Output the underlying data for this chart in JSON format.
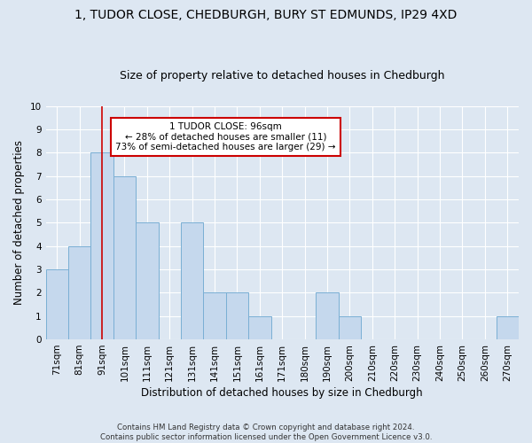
{
  "title": "1, TUDOR CLOSE, CHEDBURGH, BURY ST EDMUNDS, IP29 4XD",
  "subtitle": "Size of property relative to detached houses in Chedburgh",
  "xlabel": "Distribution of detached houses by size in Chedburgh",
  "ylabel": "Number of detached properties",
  "categories": [
    "71sqm",
    "81sqm",
    "91sqm",
    "101sqm",
    "111sqm",
    "121sqm",
    "131sqm",
    "141sqm",
    "151sqm",
    "161sqm",
    "171sqm",
    "180sqm",
    "190sqm",
    "200sqm",
    "210sqm",
    "220sqm",
    "230sqm",
    "240sqm",
    "250sqm",
    "260sqm",
    "270sqm"
  ],
  "values": [
    3,
    4,
    8,
    7,
    5,
    0,
    5,
    2,
    2,
    1,
    0,
    0,
    2,
    1,
    0,
    0,
    0,
    0,
    0,
    0,
    1
  ],
  "bar_color": "#c5d8ed",
  "bar_edge_color": "#7aafd4",
  "red_line_index": 2,
  "ylim": [
    0,
    10
  ],
  "yticks": [
    0,
    1,
    2,
    3,
    4,
    5,
    6,
    7,
    8,
    9,
    10
  ],
  "annotation_title": "1 TUDOR CLOSE: 96sqm",
  "annotation_line1": "← 28% of detached houses are smaller (11)",
  "annotation_line2": "73% of semi-detached houses are larger (29) →",
  "footer_line1": "Contains HM Land Registry data © Crown copyright and database right 2024.",
  "footer_line2": "Contains public sector information licensed under the Open Government Licence v3.0.",
  "bg_color": "#dde7f2",
  "plot_bg_color": "#dde7f2",
  "grid_color": "#ffffff",
  "title_fontsize": 10,
  "subtitle_fontsize": 9,
  "label_fontsize": 8.5,
  "tick_fontsize": 7.5,
  "annotation_box_color": "#ffffff",
  "annotation_box_edge": "#cc0000"
}
